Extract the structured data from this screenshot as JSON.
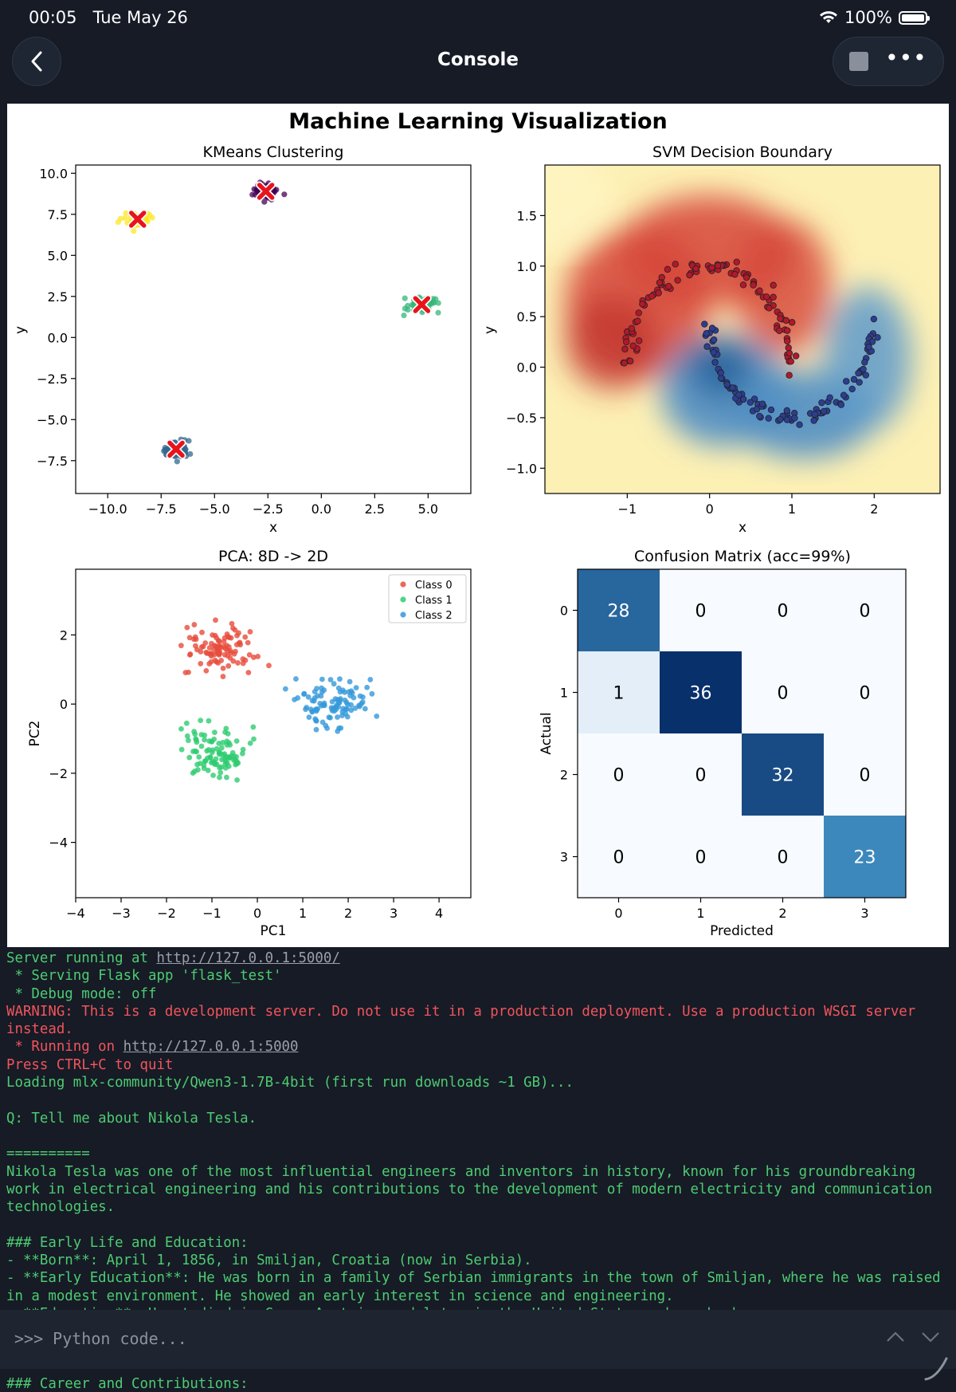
{
  "status": {
    "time": "00:05",
    "date": "Tue May 26",
    "battery": "100%"
  },
  "nav": {
    "title": "Console"
  },
  "figure": {
    "suptitle": "Machine Learning Visualization",
    "kmeans": {
      "title": "KMeans Clustering",
      "xlabel": "x",
      "ylabel": "y",
      "xticks": [
        "−10.0",
        "−7.5",
        "−5.0",
        "−2.5",
        "0.0",
        "2.5",
        "5.0"
      ],
      "yticks": [
        "10.0",
        "7.5",
        "5.0",
        "2.5",
        "0.0",
        "−2.5",
        "−5.0",
        "−7.5"
      ],
      "xlim": [
        -11.5,
        7
      ],
      "ylim": [
        -9.5,
        10.5
      ],
      "clusters": [
        {
          "color": "#fde725",
          "center": [
            -8.6,
            7.2
          ]
        },
        {
          "color": "#440154",
          "center": [
            -2.6,
            8.9
          ]
        },
        {
          "color": "#35b779",
          "center": [
            4.7,
            2.0
          ]
        },
        {
          "color": "#31688e",
          "center": [
            -6.8,
            -6.8
          ]
        }
      ]
    },
    "svm": {
      "title": "SVM Decision Boundary",
      "xlabel": "x",
      "ylabel": "y",
      "xticks": [
        "−1",
        "0",
        "1",
        "2"
      ],
      "yticks": [
        "1.5",
        "1.0",
        "0.5",
        "0.0",
        "−0.5",
        "−1.0"
      ],
      "xlim": [
        -2,
        2.8
      ],
      "ylim": [
        -1.25,
        2.0
      ]
    },
    "pca": {
      "title": "PCA: 8D -> 2D",
      "xlabel": "PC1",
      "ylabel": "PC2",
      "xticks": [
        "−4",
        "−3",
        "−2",
        "−1",
        "0",
        "1",
        "2",
        "3",
        "4"
      ],
      "yticks": [
        "2",
        "0",
        "−2",
        "−4"
      ],
      "xlim": [
        -4,
        4.7
      ],
      "ylim": [
        -5.6,
        3.9
      ],
      "legend": [
        "Class 0",
        "Class 1",
        "Class 2"
      ],
      "colors": [
        "#e74c3c",
        "#2ecc71",
        "#3498db"
      ]
    },
    "cm": {
      "title": "Confusion Matrix (acc=99%)",
      "xlabel": "Predicted",
      "ylabel": "Actual",
      "labels": [
        "0",
        "1",
        "2",
        "3"
      ],
      "values": [
        [
          28,
          0,
          0,
          0
        ],
        [
          1,
          36,
          0,
          0
        ],
        [
          0,
          0,
          32,
          0
        ],
        [
          0,
          0,
          0,
          23
        ]
      ]
    }
  },
  "console": {
    "lines": [
      {
        "text": "Server running at ",
        "url": "http://127.0.0.1:5000/",
        "color": "green"
      },
      {
        "text": " * Serving Flask app 'flask_test'",
        "color": "green"
      },
      {
        "text": " * Debug mode: off",
        "color": "green"
      },
      {
        "text": "WARNING: This is a development server. Do not use it in a production deployment. Use a production WSGI server instead.",
        "color": "red"
      },
      {
        "text": " * Running on ",
        "url": "http://127.0.0.1:5000",
        "color": "red"
      },
      {
        "text": "Press CTRL+C to quit",
        "color": "red"
      },
      {
        "text": "Loading mlx-community/Qwen3-1.7B-4bit (first run downloads ~1 GB)...",
        "color": "green"
      },
      {
        "text": "",
        "color": "green"
      },
      {
        "text": "Q: Tell me about Nikola Tesla.",
        "color": "green"
      },
      {
        "text": "",
        "color": "green"
      },
      {
        "text": "==========",
        "color": "green"
      },
      {
        "text": "Nikola Tesla was one of the most influential engineers and inventors in history, known for his groundbreaking work in electrical engineering and his contributions to the development of modern electricity and communication technologies.",
        "color": "green"
      },
      {
        "text": "",
        "color": "green"
      },
      {
        "text": "### Early Life and Education:",
        "color": "green"
      },
      {
        "text": "- **Born**: April 1, 1856, in Smiljan, Croatia (now in Serbia).",
        "color": "green"
      },
      {
        "text": "- **Early Education**: He was born in a family of Serbian immigrants in the town of Smiljan, where he was raised in a modest environment. He showed an early interest in science and engineering.",
        "color": "green"
      },
      {
        "text": "- **Education**: He studied in Graz, Austria, and later in the United States, where he became a",
        "color": "green"
      }
    ]
  },
  "input": {
    "placeholder": ">>> Python code..."
  },
  "under_text": "### Career and Contributions:"
}
